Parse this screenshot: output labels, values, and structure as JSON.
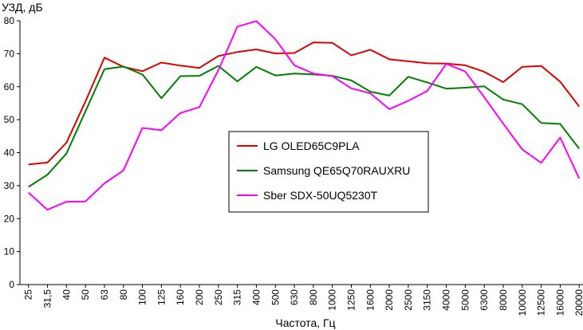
{
  "chart_data": {
    "type": "line",
    "ylabel": "УЗД, дБ",
    "xlabel": "Частота, Гц",
    "ylim": [
      0,
      80
    ],
    "yticks": [
      0,
      10,
      20,
      30,
      40,
      50,
      60,
      70,
      80
    ],
    "grid": false,
    "legend_position": "center",
    "categories": [
      "25",
      "31,5",
      "40",
      "50",
      "63",
      "80",
      "100",
      "125",
      "160",
      "200",
      "250",
      "315",
      "400",
      "500",
      "630",
      "800",
      "1000",
      "1250",
      "1600",
      "2000",
      "2500",
      "3150",
      "4000",
      "5000",
      "6300",
      "8000",
      "10000",
      "12500",
      "16000",
      "20000"
    ],
    "series": [
      {
        "name": "LG OLED65C9PLA",
        "color": "#e00000",
        "values": [
          36.4,
          37,
          43,
          55.5,
          68.8,
          66,
          64.7,
          67.3,
          66.4,
          65.7,
          69.3,
          70.5,
          71.3,
          70.1,
          70.2,
          73.4,
          73.3,
          69.5,
          71.2,
          68.3,
          67.7,
          67.1,
          67,
          66.5,
          64.5,
          61.4,
          66,
          66.3,
          61.5,
          54
        ]
      },
      {
        "name": "Samsung QE65Q70RAUXRU",
        "color": "#008000",
        "values": [
          29.6,
          33.3,
          39.7,
          52.5,
          65.3,
          66.1,
          63.7,
          56.5,
          63.2,
          63.3,
          66.3,
          61.6,
          66,
          63.4,
          64,
          63.7,
          63.3,
          61.9,
          58.5,
          57.3,
          63,
          61.3,
          59.4,
          59.7,
          60.1,
          56.1,
          54.7,
          49,
          48.7,
          41.2
        ]
      },
      {
        "name": "Sber SDX-50UQ5230T",
        "color": "#ff00ff",
        "values": [
          27.9,
          22.7,
          25.1,
          25.2,
          30.7,
          34.6,
          47.5,
          46.8,
          52,
          53.8,
          65,
          78.2,
          79.9,
          74.4,
          66.5,
          64,
          63.2,
          59.5,
          58,
          53.2,
          55.7,
          58.7,
          66.9,
          64.6,
          56.8,
          48.8,
          41,
          36.9,
          44.6,
          32.2
        ]
      }
    ]
  }
}
